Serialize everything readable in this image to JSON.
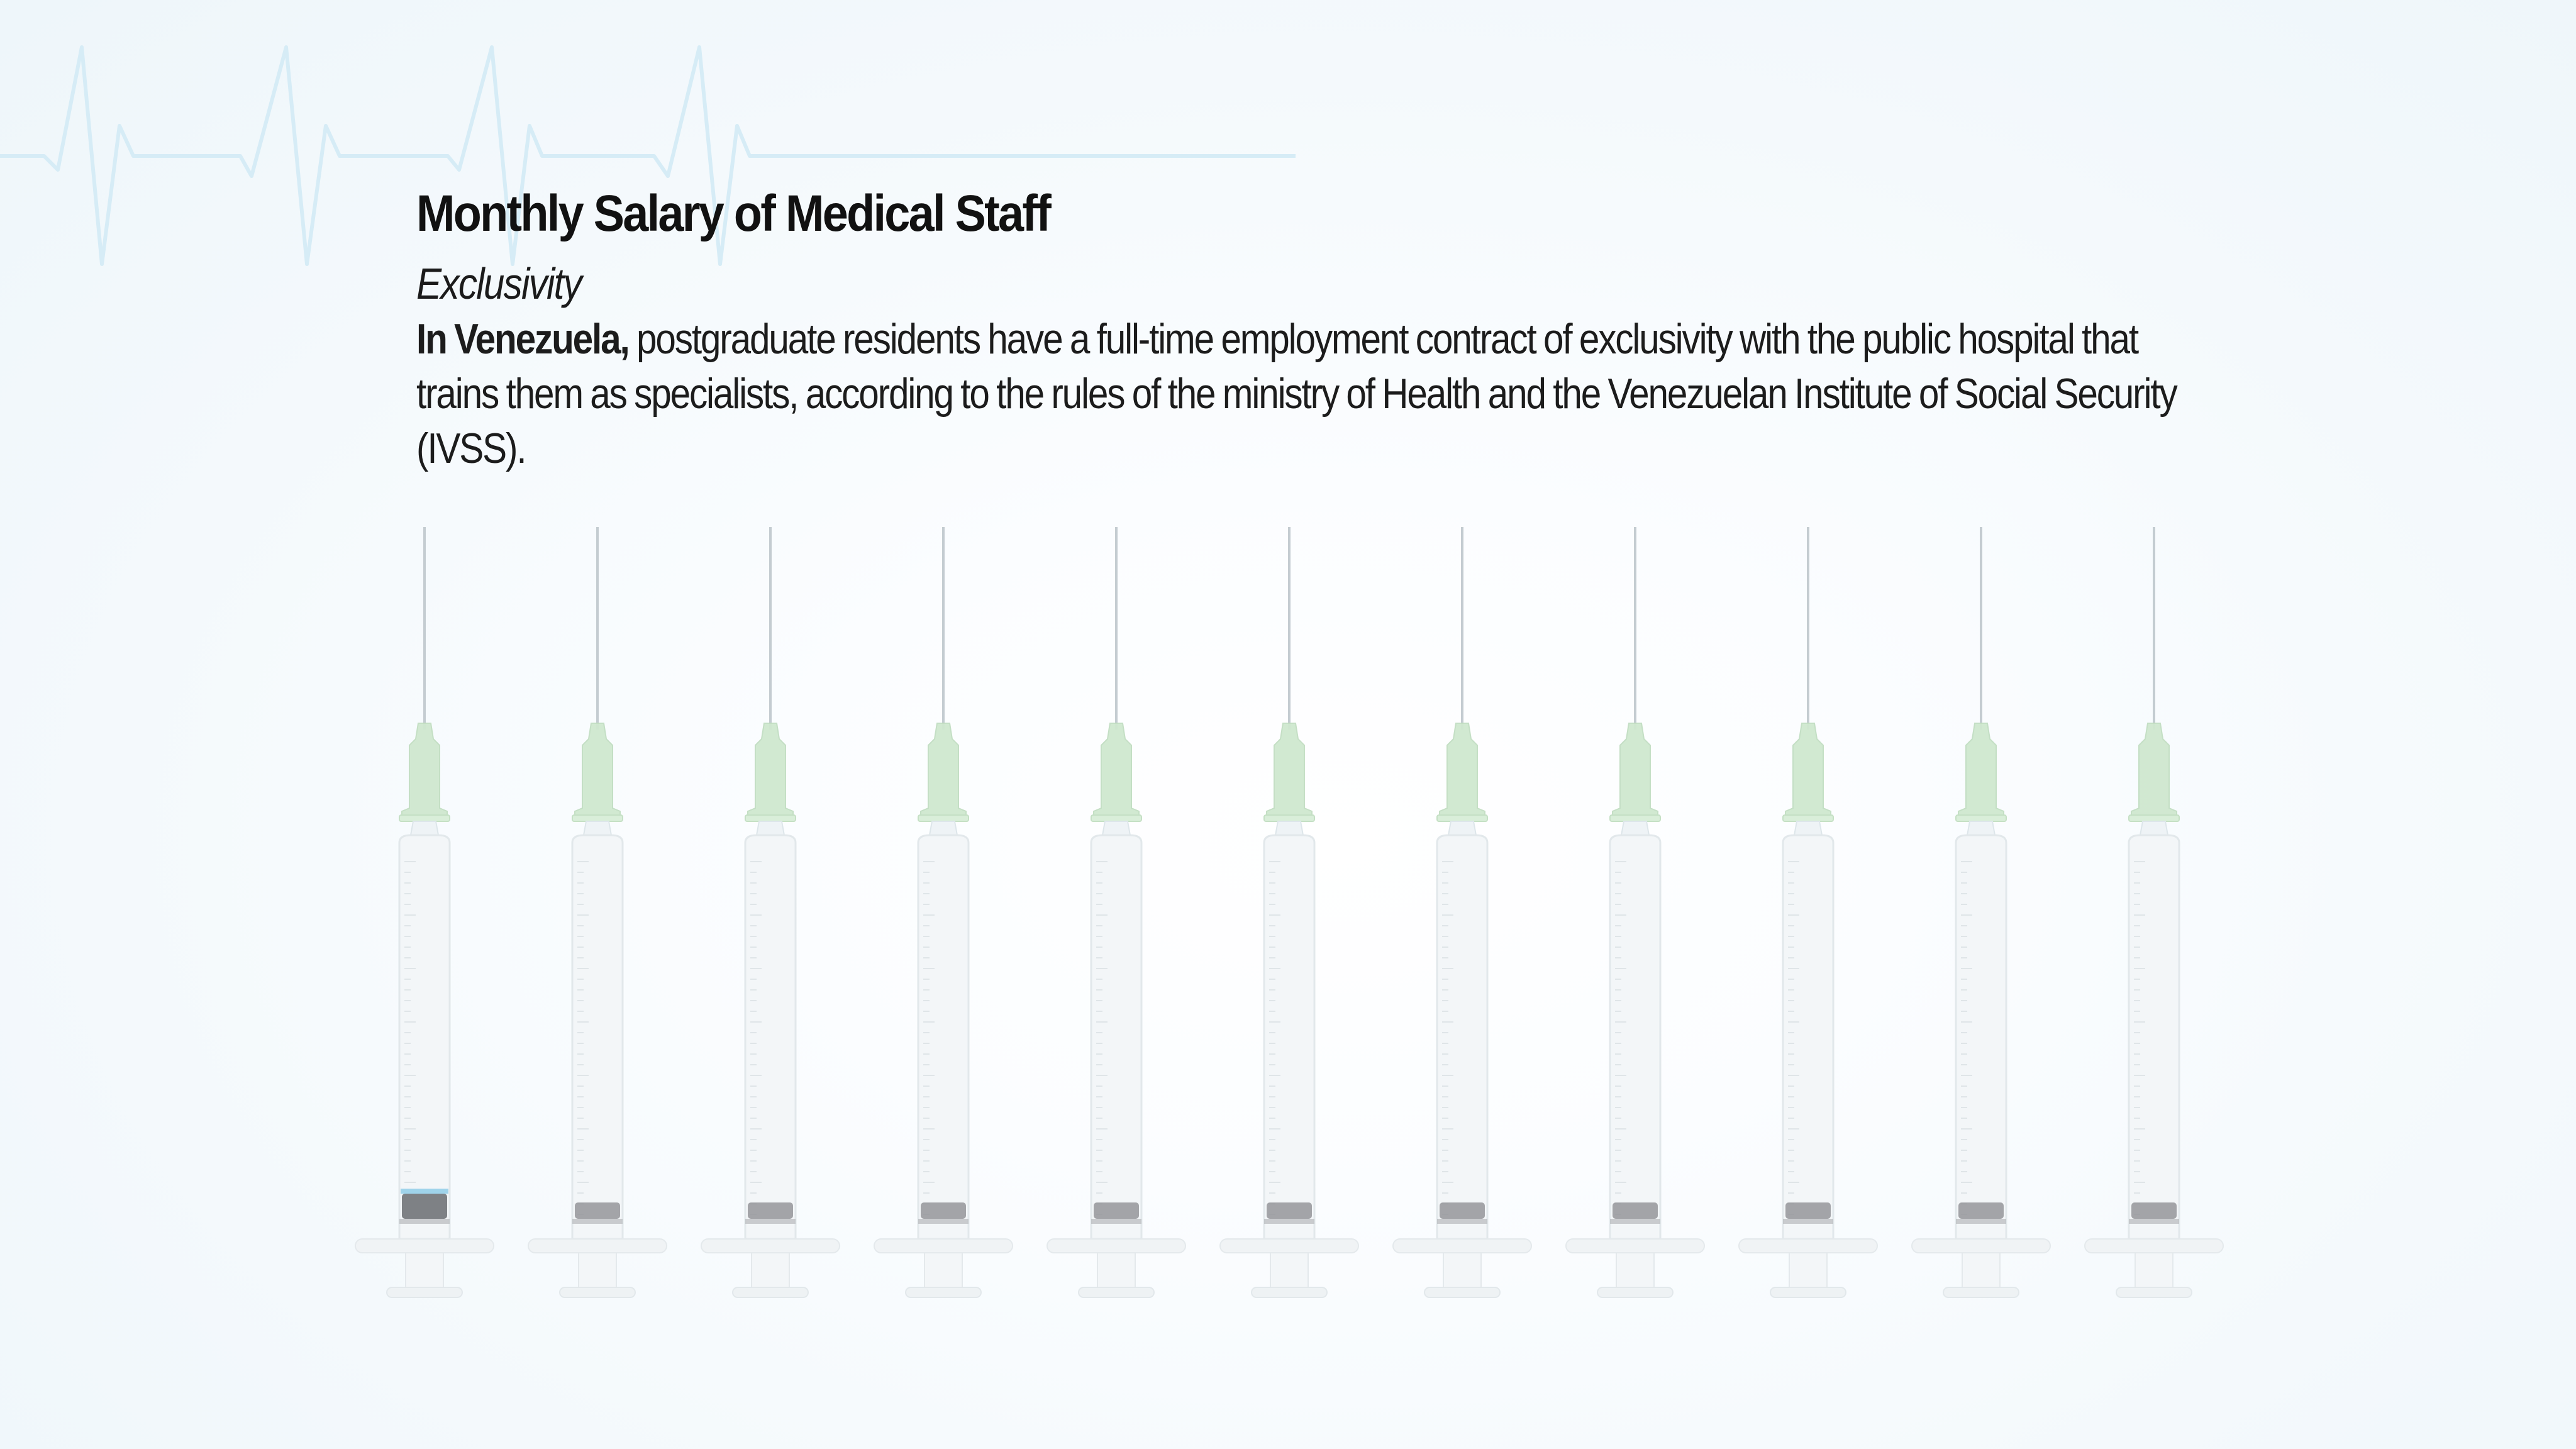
{
  "title": "Monthly Salary of Medical Staff",
  "subtitle": "Exclusivity",
  "description": {
    "lead": "In Venezuela,",
    "body": "postgraduate residents have a full-time employment contract of exclusivity with the public hospital that trains them as specialists, according to the rules of the ministry of Health and the Venezuelan Institute of Social Security (IVSS)."
  },
  "syringes": {
    "count": 11,
    "filled_index": 0,
    "fill_color": "#9fd3ea",
    "hub_color": "#cfe8cf",
    "plunger_color": "#8e9093"
  },
  "colors": {
    "heartbeat": "#cfe8f4",
    "background": "#f4f9fc"
  },
  "icons": {
    "heartbeat": "heartbeat-line-icon",
    "syringe": "syringe-icon"
  }
}
